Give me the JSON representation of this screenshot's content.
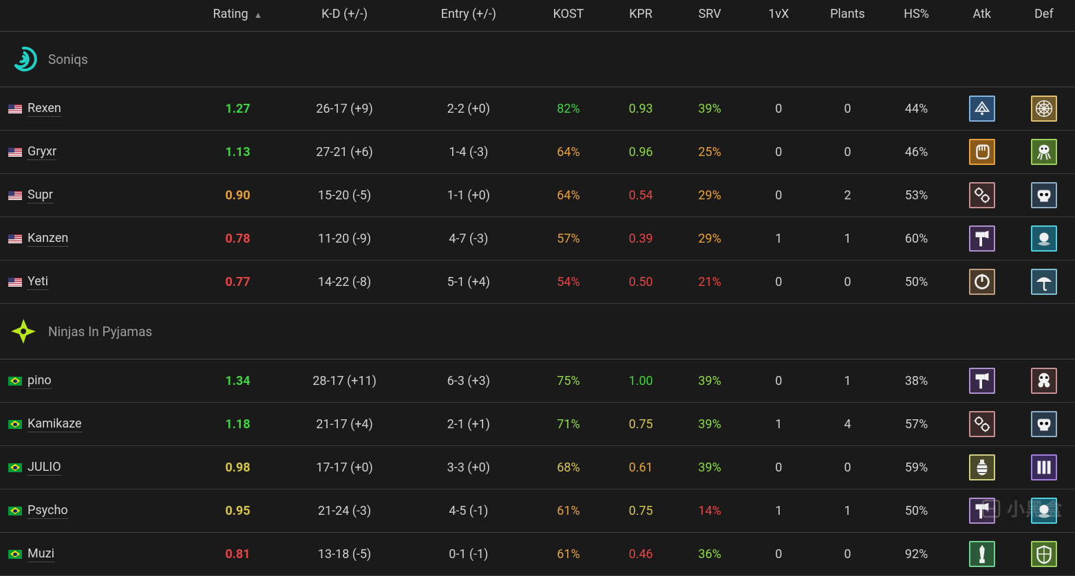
{
  "colors": {
    "background": "#1a1a1a",
    "text": "#d0d0d0",
    "muted": "#9e9e9e",
    "border_header": "#444444",
    "border_row": "#3a3a3a",
    "good": "#3fd63f",
    "good_alt": "#8fd948",
    "warn": "#e8a23c",
    "warn_yellow": "#d8c84a",
    "bad": "#e84545",
    "watermark": "rgba(200,200,200,0.25)"
  },
  "columns": [
    {
      "key": "player",
      "label": "",
      "align": "left"
    },
    {
      "key": "rating",
      "label": "Rating",
      "sortable": true,
      "sort_dir": "asc"
    },
    {
      "key": "kd",
      "label": "K-D (+/-)"
    },
    {
      "key": "entry",
      "label": "Entry (+/-)"
    },
    {
      "key": "kost",
      "label": "KOST"
    },
    {
      "key": "kpr",
      "label": "KPR"
    },
    {
      "key": "srv",
      "label": "SRV"
    },
    {
      "key": "onevx",
      "label": "1vX"
    },
    {
      "key": "plants",
      "label": "Plants"
    },
    {
      "key": "hs",
      "label": "HS%"
    },
    {
      "key": "atk",
      "label": "Atk"
    },
    {
      "key": "def",
      "label": "Def"
    }
  ],
  "sort_indicator": "▲",
  "teams": [
    {
      "name": "Soniqs",
      "logo": {
        "type": "spiral",
        "color": "#1fd1c6"
      },
      "players": [
        {
          "flag": "us",
          "name": "Rexen",
          "rating": {
            "v": "1.27",
            "c": "#3fd63f"
          },
          "kd": "26-17 (+9)",
          "entry": "2-2 (+0)",
          "kost": {
            "v": "82%",
            "c": "#3fd63f"
          },
          "kpr": {
            "v": "0.93",
            "c": "#8fd948"
          },
          "srv": {
            "v": "39%",
            "c": "#8fd948"
          },
          "onevx": "0",
          "plants": "0",
          "hs": "44%",
          "atk": {
            "bg": "#2a4a6e",
            "border": "#7fb3e0",
            "glyph": "ace"
          },
          "def": {
            "bg": "#6e5a2a",
            "border": "#e0c070",
            "glyph": "web"
          }
        },
        {
          "flag": "us",
          "name": "Gryxr",
          "rating": {
            "v": "1.13",
            "c": "#3fd63f"
          },
          "kd": "27-21 (+6)",
          "entry": "1-4 (-3)",
          "kost": {
            "v": "64%",
            "c": "#e8a23c"
          },
          "kpr": {
            "v": "0.96",
            "c": "#8fd948"
          },
          "srv": {
            "v": "25%",
            "c": "#e8a23c"
          },
          "onevx": "0",
          "plants": "0",
          "hs": "46%",
          "atk": {
            "bg": "#8a5a1a",
            "border": "#e8a23c",
            "glyph": "fist"
          },
          "def": {
            "bg": "#4a6e2a",
            "border": "#a0d060",
            "glyph": "squid"
          }
        },
        {
          "flag": "us",
          "name": "Supr",
          "rating": {
            "v": "0.90",
            "c": "#e8a23c"
          },
          "kd": "15-20 (-5)",
          "entry": "1-1 (+0)",
          "kost": {
            "v": "64%",
            "c": "#e8a23c"
          },
          "kpr": {
            "v": "0.54",
            "c": "#e84545"
          },
          "srv": {
            "v": "29%",
            "c": "#e8a23c"
          },
          "onevx": "0",
          "plants": "2",
          "hs": "53%",
          "atk": {
            "bg": "#3a2a2a",
            "border": "#c89090",
            "glyph": "gears"
          },
          "def": {
            "bg": "#2a3a4a",
            "border": "#90b0c8",
            "glyph": "skull"
          }
        },
        {
          "flag": "us",
          "name": "Kanzen",
          "rating": {
            "v": "0.78",
            "c": "#e84545"
          },
          "kd": "11-20 (-9)",
          "entry": "4-7 (-3)",
          "kost": {
            "v": "57%",
            "c": "#e8a23c"
          },
          "kpr": {
            "v": "0.39",
            "c": "#e84545"
          },
          "srv": {
            "v": "29%",
            "c": "#e8a23c"
          },
          "onevx": "1",
          "plants": "1",
          "hs": "60%",
          "atk": {
            "bg": "#3a2a4a",
            "border": "#b090d0",
            "glyph": "hammer"
          },
          "def": {
            "bg": "#1a5a6a",
            "border": "#50d0e0",
            "glyph": "orb"
          }
        },
        {
          "flag": "us",
          "name": "Yeti",
          "rating": {
            "v": "0.77",
            "c": "#e84545"
          },
          "kd": "14-22 (-8)",
          "entry": "5-1 (+4)",
          "kost": {
            "v": "54%",
            "c": "#e84545"
          },
          "kpr": {
            "v": "0.50",
            "c": "#e84545"
          },
          "srv": {
            "v": "21%",
            "c": "#e84545"
          },
          "onevx": "0",
          "plants": "0",
          "hs": "50%",
          "atk": {
            "bg": "#4a3a2a",
            "border": "#c0a080",
            "glyph": "power"
          },
          "def": {
            "bg": "#2a4a5a",
            "border": "#80c0d0",
            "glyph": "umbrella"
          }
        }
      ]
    },
    {
      "name": "Ninjas In Pyjamas",
      "logo": {
        "type": "shuriken",
        "color": "#b8e818"
      },
      "players": [
        {
          "flag": "br",
          "name": "pino",
          "rating": {
            "v": "1.34",
            "c": "#3fd63f"
          },
          "kd": "28-17 (+11)",
          "entry": "6-3 (+3)",
          "kost": {
            "v": "75%",
            "c": "#8fd948"
          },
          "kpr": {
            "v": "1.00",
            "c": "#3fd63f"
          },
          "srv": {
            "v": "39%",
            "c": "#8fd948"
          },
          "onevx": "0",
          "plants": "1",
          "hs": "38%",
          "atk": {
            "bg": "#3a2a4a",
            "border": "#b090d0",
            "glyph": "hammer"
          },
          "def": {
            "bg": "#3a2a2a",
            "border": "#c89090",
            "glyph": "gasmask"
          }
        },
        {
          "flag": "br",
          "name": "Kamikaze",
          "rating": {
            "v": "1.18",
            "c": "#3fd63f"
          },
          "kd": "21-17 (+4)",
          "entry": "2-1 (+1)",
          "kost": {
            "v": "71%",
            "c": "#8fd948"
          },
          "kpr": {
            "v": "0.75",
            "c": "#d8c84a"
          },
          "srv": {
            "v": "39%",
            "c": "#8fd948"
          },
          "onevx": "1",
          "plants": "4",
          "hs": "57%",
          "atk": {
            "bg": "#3a2a2a",
            "border": "#c89090",
            "glyph": "gears"
          },
          "def": {
            "bg": "#2a3a4a",
            "border": "#90b0c8",
            "glyph": "skull"
          }
        },
        {
          "flag": "br",
          "name": "JULIO",
          "rating": {
            "v": "0.98",
            "c": "#d8c84a"
          },
          "kd": "17-17 (+0)",
          "entry": "3-3 (+0)",
          "kost": {
            "v": "68%",
            "c": "#d8c84a"
          },
          "kpr": {
            "v": "0.61",
            "c": "#e8a23c"
          },
          "srv": {
            "v": "39%",
            "c": "#8fd948"
          },
          "onevx": "0",
          "plants": "0",
          "hs": "59%",
          "atk": {
            "bg": "#4a4a2a",
            "border": "#d0d080",
            "glyph": "grenade"
          },
          "def": {
            "bg": "#3a2a5a",
            "border": "#a080e0",
            "glyph": "bars"
          }
        },
        {
          "flag": "br",
          "name": "Psycho",
          "rating": {
            "v": "0.95",
            "c": "#d8c84a"
          },
          "kd": "21-24 (-3)",
          "entry": "4-5 (-1)",
          "kost": {
            "v": "61%",
            "c": "#e8a23c"
          },
          "kpr": {
            "v": "0.75",
            "c": "#d8c84a"
          },
          "srv": {
            "v": "14%",
            "c": "#e84545"
          },
          "onevx": "1",
          "plants": "1",
          "hs": "50%",
          "atk": {
            "bg": "#3a2a4a",
            "border": "#b090d0",
            "glyph": "hammer"
          },
          "def": {
            "bg": "#1a5a6a",
            "border": "#50d0e0",
            "glyph": "orb"
          }
        },
        {
          "flag": "br",
          "name": "Muzi",
          "rating": {
            "v": "0.81",
            "c": "#e84545"
          },
          "kd": "13-18 (-5)",
          "entry": "0-1 (-1)",
          "kost": {
            "v": "61%",
            "c": "#e8a23c"
          },
          "kpr": {
            "v": "0.46",
            "c": "#e84545"
          },
          "srv": {
            "v": "36%",
            "c": "#8fd948"
          },
          "onevx": "0",
          "plants": "0",
          "hs": "92%",
          "atk": {
            "bg": "#2a5a3a",
            "border": "#70d090",
            "glyph": "knife"
          },
          "def": {
            "bg": "#4a6e2a",
            "border": "#a0d060",
            "glyph": "shield"
          }
        }
      ]
    }
  ],
  "watermark": {
    "text": "小黑盒"
  }
}
